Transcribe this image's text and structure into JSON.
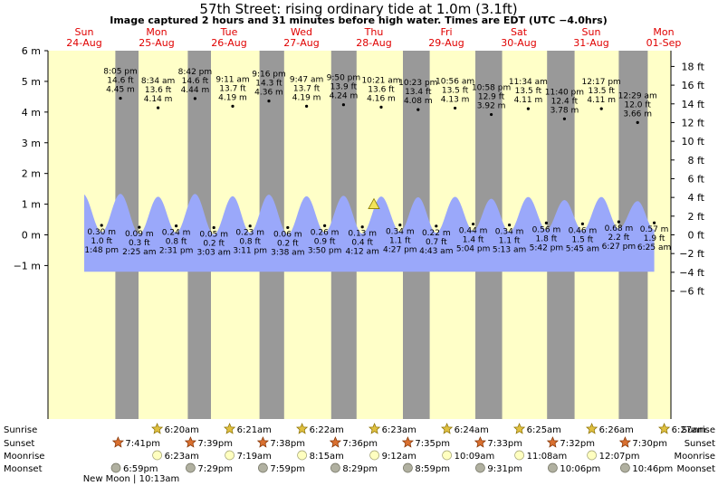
{
  "title": "57th Street: rising  ordinary tide at 1.0m (3.1ft)",
  "subtitle": "Image captured 2 hours and 31 minutes before high water. Times are EDT (UTC −4.0hrs)",
  "colors": {
    "daylight": "#ffffc8",
    "night": "#999999",
    "tide_fill": "#9aa8fa",
    "text": "#000000",
    "date_text": "#e00000"
  },
  "chart_data": {
    "type": "area",
    "title": "57th Street: rising  ordinary tide at 1.0m (3.1ft)",
    "ylim_m": [
      -6,
      6
    ],
    "ylim_ft": [
      -6,
      19
    ],
    "left_ticks": [
      {
        "v": 6,
        "label": "6 m"
      },
      {
        "v": 5,
        "label": "5 m"
      },
      {
        "v": 4,
        "label": "4 m"
      },
      {
        "v": 3,
        "label": "3 m"
      },
      {
        "v": 2,
        "label": "2 m"
      },
      {
        "v": 1,
        "label": "1 m"
      },
      {
        "v": 0,
        "label": "0 m"
      },
      {
        "v": -1,
        "label": "−1 m"
      }
    ],
    "right_ticks": [
      {
        "v": 18,
        "label": "18 ft"
      },
      {
        "v": 16,
        "label": "16 ft"
      },
      {
        "v": 14,
        "label": "14 ft"
      },
      {
        "v": 12,
        "label": "12 ft"
      },
      {
        "v": 10,
        "label": "10 ft"
      },
      {
        "v": 8,
        "label": "8 ft"
      },
      {
        "v": 6,
        "label": "6 ft"
      },
      {
        "v": 4,
        "label": "4 ft"
      },
      {
        "v": 2,
        "label": "2 ft"
      },
      {
        "v": 0,
        "label": "0 ft"
      },
      {
        "v": -2,
        "label": "−2 ft"
      },
      {
        "v": -4,
        "label": "−4 ft"
      },
      {
        "v": -6,
        "label": "−6 ft"
      }
    ],
    "x_range_days": [
      0,
      8.6
    ],
    "days": [
      {
        "dow": "Sun",
        "date": "24‑Aug"
      },
      {
        "dow": "Mon",
        "date": "25‑Aug"
      },
      {
        "dow": "Tue",
        "date": "26‑Aug"
      },
      {
        "dow": "Wed",
        "date": "27‑Aug"
      },
      {
        "dow": "Thu",
        "date": "28‑Aug"
      },
      {
        "dow": "Fri",
        "date": "29‑Aug"
      },
      {
        "dow": "Sat",
        "date": "30‑Aug"
      },
      {
        "dow": "Sun",
        "date": "31‑Aug"
      },
      {
        "dow": "Mon",
        "date": "01‑Sep"
      }
    ],
    "night_bands_days": [
      [
        0.93,
        1.25
      ],
      [
        1.93,
        2.25
      ],
      [
        2.92,
        3.26
      ],
      [
        3.91,
        4.26
      ],
      [
        4.9,
        5.27
      ],
      [
        5.9,
        6.27
      ],
      [
        6.89,
        7.27
      ],
      [
        7.88,
        8.28
      ]
    ],
    "extremes": [
      {
        "type": "low",
        "t": 0.74,
        "time": "1:48 pm",
        "m": "0.30 m",
        "ft": "1.0 ft",
        "v": 0.3
      },
      {
        "type": "high",
        "t": 1.0,
        "time": "8:05 pm",
        "m": "4.45 m",
        "ft": "14.6 ft",
        "v": 4.45
      },
      {
        "type": "low",
        "t": 1.26,
        "time": "2:25 am",
        "m": "0.09 m",
        "ft": "0.3 ft",
        "v": 0.09
      },
      {
        "type": "high",
        "t": 1.52,
        "time": "8:34 am",
        "m": "4.14 m",
        "ft": "13.6 ft",
        "v": 4.14
      },
      {
        "type": "low",
        "t": 1.77,
        "time": "2:31 pm",
        "m": "0.24 m",
        "ft": "0.8 ft",
        "v": 0.24
      },
      {
        "type": "high",
        "t": 2.03,
        "time": "8:42 pm",
        "m": "4.44 m",
        "ft": "14.6 ft",
        "v": 4.44
      },
      {
        "type": "low",
        "t": 2.29,
        "time": "3:03 am",
        "m": "0.05 m",
        "ft": "0.2 ft",
        "v": 0.05
      },
      {
        "type": "high",
        "t": 2.55,
        "time": "9:11 am",
        "m": "4.19 m",
        "ft": "13.7 ft",
        "v": 4.19
      },
      {
        "type": "low",
        "t": 2.79,
        "time": "3:11 pm",
        "m": "0.23 m",
        "ft": "0.8 ft",
        "v": 0.23
      },
      {
        "type": "high",
        "t": 3.05,
        "time": "9:16 pm",
        "m": "4.36 m",
        "ft": "14.3 ft",
        "v": 4.36
      },
      {
        "type": "low",
        "t": 3.31,
        "time": "3:38 am",
        "m": "0.06 m",
        "ft": "0.2 ft",
        "v": 0.06
      },
      {
        "type": "high",
        "t": 3.57,
        "time": "9:47 am",
        "m": "4.19 m",
        "ft": "13.7 ft",
        "v": 4.19
      },
      {
        "type": "low",
        "t": 3.82,
        "time": "3:50 pm",
        "m": "0.26 m",
        "ft": "0.9 ft",
        "v": 0.26
      },
      {
        "type": "high",
        "t": 4.08,
        "time": "9:50 pm",
        "m": "4.24 m",
        "ft": "13.9 ft",
        "v": 4.24
      },
      {
        "type": "low",
        "t": 4.34,
        "time": "4:12 am",
        "m": "0.13 m",
        "ft": "0.4 ft",
        "v": 0.13
      },
      {
        "type": "high",
        "t": 4.6,
        "time": "10:21 am",
        "m": "4.16 m",
        "ft": "13.6 ft",
        "v": 4.16
      },
      {
        "type": "low",
        "t": 4.86,
        "time": "4:27 pm",
        "m": "0.34 m",
        "ft": "1.1 ft",
        "v": 0.34
      },
      {
        "type": "high",
        "t": 5.11,
        "time": "10:23 pm",
        "m": "4.08 m",
        "ft": "13.4 ft",
        "v": 4.08
      },
      {
        "type": "low",
        "t": 5.36,
        "time": "4:43 am",
        "m": "0.22 m",
        "ft": "0.7 ft",
        "v": 0.22
      },
      {
        "type": "high",
        "t": 5.62,
        "time": "10:56 am",
        "m": "4.13 m",
        "ft": "13.5 ft",
        "v": 4.13
      },
      {
        "type": "low",
        "t": 5.87,
        "time": "5:04 pm",
        "m": "0.44 m",
        "ft": "1.4 ft",
        "v": 0.44
      },
      {
        "type": "high",
        "t": 6.12,
        "time": "10:58 pm",
        "m": "3.92 m",
        "ft": "12.9 ft",
        "v": 3.92
      },
      {
        "type": "low",
        "t": 6.37,
        "time": "5:13 am",
        "m": "0.34 m",
        "ft": "1.1 ft",
        "v": 0.34
      },
      {
        "type": "high",
        "t": 6.63,
        "time": "11:34 am",
        "m": "4.11 m",
        "ft": "13.5 ft",
        "v": 4.11
      },
      {
        "type": "low",
        "t": 6.88,
        "time": "5:42 pm",
        "m": "0.56 m",
        "ft": "1.8 ft",
        "v": 0.56
      },
      {
        "type": "high",
        "t": 7.13,
        "time": "11:40 pm",
        "m": "3.78 m",
        "ft": "12.4 ft",
        "v": 3.78
      },
      {
        "type": "low",
        "t": 7.38,
        "time": "5:45 am",
        "m": "0.46 m",
        "ft": "1.5 ft",
        "v": 0.46
      },
      {
        "type": "high",
        "t": 7.64,
        "time": "12:17 pm",
        "m": "4.11 m",
        "ft": "13.5 ft",
        "v": 4.11
      },
      {
        "type": "low",
        "t": 7.88,
        "time": "6:27 pm",
        "m": "0.68 m",
        "ft": "2.2 ft",
        "v": 0.68
      },
      {
        "type": "high",
        "t": 8.14,
        "time": "12:29 am",
        "m": "3.66 m",
        "ft": "12.0 ft",
        "v": 3.66
      },
      {
        "type": "low",
        "t": 8.37,
        "time": "6:25 am",
        "m": "0.57 m",
        "ft": "1.9 ft",
        "v": 0.57
      }
    ],
    "current_marker": {
      "t": 4.5,
      "m": 1.0
    }
  },
  "astro": {
    "row_labels": [
      "Sunrise",
      "Sunset",
      "Moonrise",
      "Moonset"
    ],
    "sunrise": [
      {
        "t": 1.57,
        "time": "6:20am"
      },
      {
        "t": 2.57,
        "time": "6:21am"
      },
      {
        "t": 3.57,
        "time": "6:22am"
      },
      {
        "t": 4.57,
        "time": "6:23am"
      },
      {
        "t": 5.57,
        "time": "6:24am"
      },
      {
        "t": 6.57,
        "time": "6:25am"
      },
      {
        "t": 7.57,
        "time": "6:26am"
      },
      {
        "t": 8.57,
        "time": "6:27am"
      }
    ],
    "sunset": [
      {
        "t": 1.03,
        "time": "7:41pm"
      },
      {
        "t": 2.03,
        "time": "7:39pm"
      },
      {
        "t": 3.03,
        "time": "7:38pm"
      },
      {
        "t": 4.03,
        "time": "7:36pm"
      },
      {
        "t": 5.03,
        "time": "7:35pm"
      },
      {
        "t": 6.03,
        "time": "7:33pm"
      },
      {
        "t": 7.03,
        "time": "7:32pm"
      },
      {
        "t": 8.03,
        "time": "7:30pm"
      }
    ],
    "moonrise": [
      {
        "t": 1.57,
        "time": "6:23am"
      },
      {
        "t": 2.57,
        "time": "7:19am"
      },
      {
        "t": 3.57,
        "time": "8:15am"
      },
      {
        "t": 4.57,
        "time": "9:12am"
      },
      {
        "t": 5.57,
        "time": "10:09am"
      },
      {
        "t": 6.57,
        "time": "11:08am"
      },
      {
        "t": 7.57,
        "time": "12:07pm"
      }
    ],
    "moonset": [
      {
        "t": 1.0,
        "time": "6:59pm"
      },
      {
        "t": 2.03,
        "time": "7:29pm"
      },
      {
        "t": 3.03,
        "time": "7:59pm"
      },
      {
        "t": 4.03,
        "time": "8:29pm"
      },
      {
        "t": 5.03,
        "time": "8:59pm"
      },
      {
        "t": 6.03,
        "time": "9:31pm"
      },
      {
        "t": 7.03,
        "time": "10:06pm"
      },
      {
        "t": 8.03,
        "time": "10:46pm"
      }
    ],
    "moon_phase_note": "New Moon | 10:13am"
  }
}
